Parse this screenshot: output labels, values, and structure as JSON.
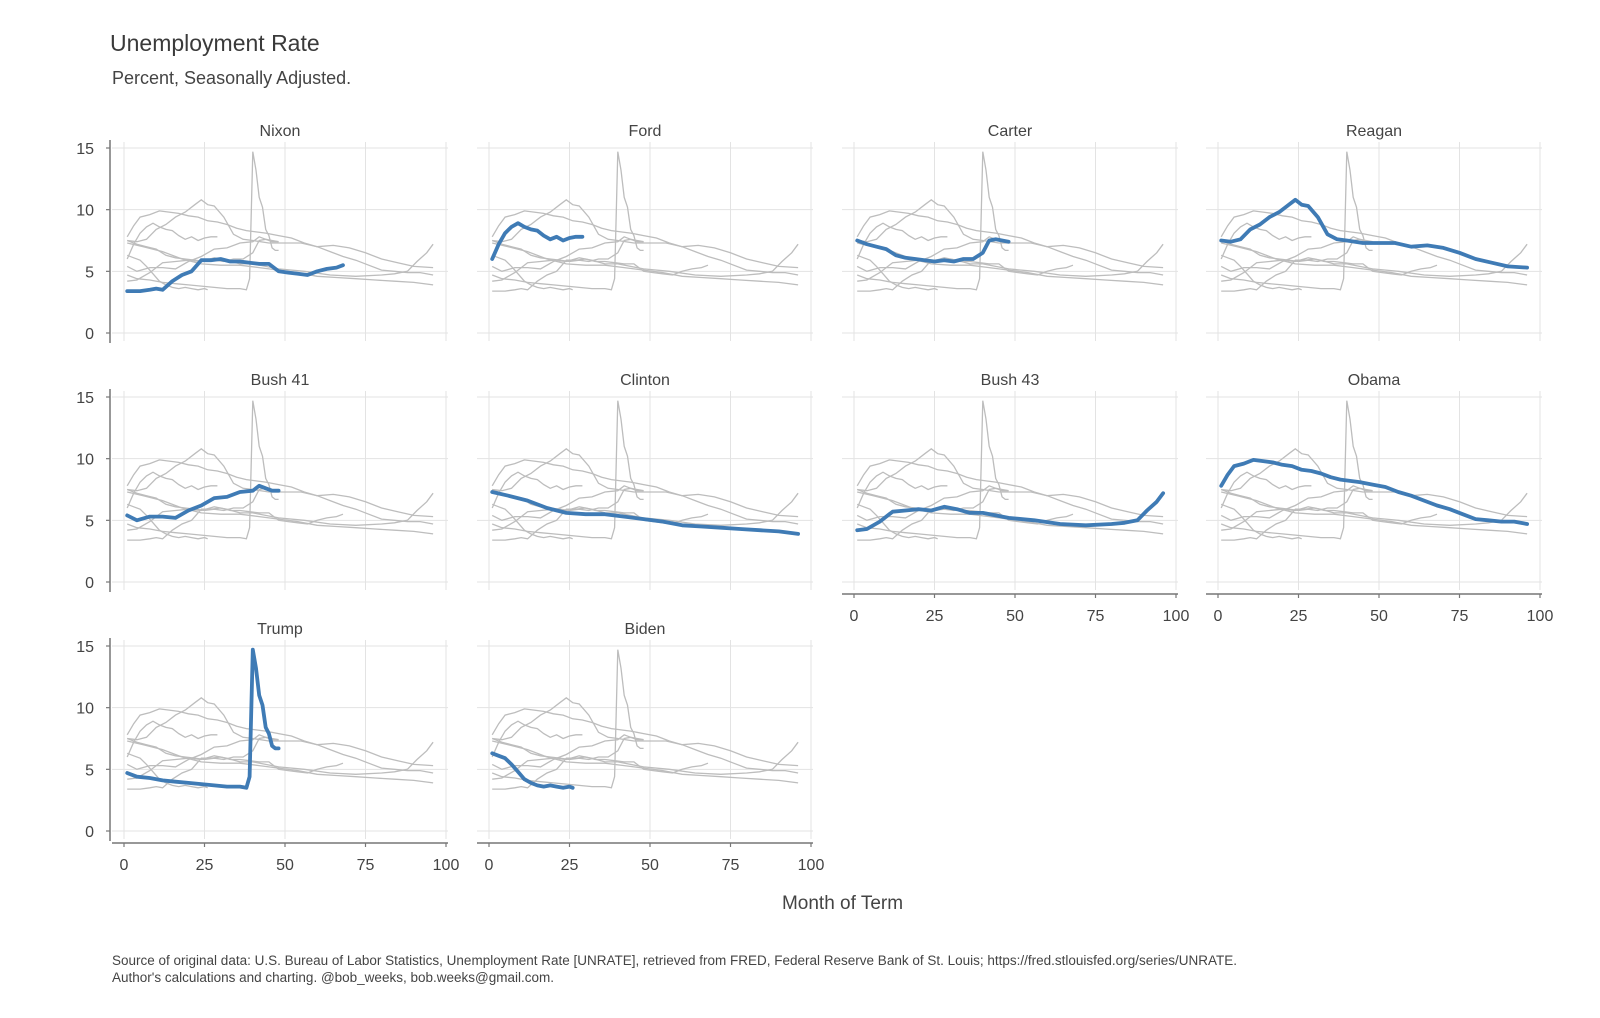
{
  "chart_data": {
    "type": "line",
    "layout": "small-multiples",
    "title": "Unemployment Rate",
    "subtitle": "Percent, Seasonally Adjusted.",
    "xlabel": "Month of Term",
    "ylabel": "",
    "xlim": [
      0,
      100
    ],
    "ylim": [
      0,
      15
    ],
    "x_ticks": [
      "0",
      "25",
      "50",
      "75",
      "100"
    ],
    "y_ticks": [
      "0",
      "5",
      "10",
      "15"
    ],
    "grid": true,
    "highlight_color": "#3f7bb5",
    "background_series_color": "#bdbdbd",
    "series": [
      {
        "name": "Nixon",
        "x": [
          1,
          5,
          8,
          10,
          12,
          15,
          18,
          21,
          24,
          27,
          30,
          33,
          36,
          39,
          42,
          45,
          48,
          51,
          54,
          57,
          60,
          63,
          66,
          68
        ],
        "values": [
          3.4,
          3.4,
          3.5,
          3.6,
          3.5,
          4.2,
          4.7,
          5.0,
          5.9,
          5.9,
          6.0,
          5.8,
          5.8,
          5.7,
          5.6,
          5.6,
          5.0,
          4.9,
          4.8,
          4.7,
          5.0,
          5.2,
          5.3,
          5.5
        ]
      },
      {
        "name": "Ford",
        "x": [
          1,
          3,
          5,
          7,
          9,
          11,
          13,
          15,
          17,
          19,
          21,
          23,
          25,
          27,
          29
        ],
        "values": [
          6.0,
          7.2,
          8.1,
          8.6,
          8.9,
          8.6,
          8.4,
          8.3,
          7.9,
          7.6,
          7.8,
          7.5,
          7.7,
          7.8,
          7.8
        ]
      },
      {
        "name": "Carter",
        "x": [
          1,
          4,
          7,
          10,
          13,
          16,
          19,
          22,
          25,
          28,
          31,
          34,
          37,
          40,
          42,
          44,
          46,
          48
        ],
        "values": [
          7.5,
          7.2,
          7.0,
          6.8,
          6.3,
          6.1,
          6.0,
          5.9,
          5.8,
          5.9,
          5.8,
          6.0,
          6.0,
          6.5,
          7.5,
          7.6,
          7.5,
          7.4
        ]
      },
      {
        "name": "Reagan",
        "x": [
          1,
          4,
          7,
          10,
          13,
          16,
          19,
          22,
          24,
          26,
          28,
          31,
          34,
          37,
          40,
          45,
          50,
          55,
          60,
          65,
          70,
          75,
          80,
          85,
          90,
          96
        ],
        "values": [
          7.5,
          7.4,
          7.6,
          8.4,
          8.8,
          9.4,
          9.8,
          10.4,
          10.8,
          10.4,
          10.3,
          9.4,
          8.0,
          7.6,
          7.5,
          7.3,
          7.3,
          7.3,
          7.0,
          7.1,
          6.9,
          6.5,
          6.0,
          5.7,
          5.4,
          5.3
        ]
      },
      {
        "name": "Bush 41",
        "x": [
          1,
          4,
          8,
          12,
          16,
          20,
          24,
          28,
          32,
          36,
          40,
          42,
          44,
          46,
          48
        ],
        "values": [
          5.4,
          5.0,
          5.3,
          5.3,
          5.2,
          5.8,
          6.2,
          6.8,
          6.9,
          7.3,
          7.4,
          7.8,
          7.6,
          7.4,
          7.4
        ]
      },
      {
        "name": "Clinton",
        "x": [
          1,
          6,
          12,
          18,
          24,
          30,
          36,
          42,
          48,
          54,
          60,
          66,
          72,
          78,
          84,
          90,
          96
        ],
        "values": [
          7.3,
          7.0,
          6.6,
          6.0,
          5.6,
          5.5,
          5.5,
          5.3,
          5.1,
          4.9,
          4.6,
          4.5,
          4.4,
          4.3,
          4.2,
          4.1,
          3.9
        ]
      },
      {
        "name": "Bush 43",
        "x": [
          1,
          4,
          8,
          12,
          16,
          20,
          24,
          28,
          32,
          36,
          40,
          48,
          56,
          64,
          72,
          80,
          84,
          88,
          91,
          94,
          96
        ],
        "values": [
          4.2,
          4.3,
          4.9,
          5.7,
          5.8,
          5.9,
          5.8,
          6.1,
          5.9,
          5.6,
          5.6,
          5.2,
          5.0,
          4.7,
          4.6,
          4.7,
          4.8,
          5.0,
          5.8,
          6.5,
          7.2
        ]
      },
      {
        "name": "Obama",
        "x": [
          1,
          3,
          5,
          8,
          11,
          14,
          17,
          20,
          23,
          26,
          29,
          32,
          35,
          38,
          41,
          44,
          48,
          52,
          56,
          60,
          64,
          68,
          72,
          76,
          80,
          84,
          88,
          92,
          96
        ],
        "values": [
          7.8,
          8.7,
          9.4,
          9.6,
          9.9,
          9.8,
          9.7,
          9.5,
          9.4,
          9.1,
          9.0,
          8.8,
          8.5,
          8.3,
          8.2,
          8.1,
          7.9,
          7.7,
          7.3,
          7.0,
          6.6,
          6.2,
          5.9,
          5.5,
          5.1,
          5.0,
          4.9,
          4.9,
          4.7
        ]
      },
      {
        "name": "Trump",
        "x": [
          1,
          4,
          8,
          12,
          16,
          20,
          24,
          28,
          32,
          36,
          38,
          39,
          40,
          41,
          42,
          43,
          44,
          45,
          46,
          47,
          48
        ],
        "values": [
          4.7,
          4.4,
          4.3,
          4.1,
          4.0,
          3.9,
          3.8,
          3.7,
          3.6,
          3.6,
          3.5,
          4.4,
          14.7,
          13.2,
          11.0,
          10.2,
          8.4,
          7.9,
          6.9,
          6.7,
          6.7
        ]
      },
      {
        "name": "Biden",
        "x": [
          1,
          3,
          5,
          7,
          9,
          11,
          13,
          15,
          17,
          19,
          21,
          23,
          25,
          26
        ],
        "values": [
          6.3,
          6.1,
          5.9,
          5.4,
          4.8,
          4.2,
          3.9,
          3.7,
          3.6,
          3.7,
          3.6,
          3.5,
          3.6,
          3.5
        ]
      }
    ]
  },
  "caption": {
    "line1": "Source of original data: U.S. Bureau of Labor Statistics, Unemployment Rate [UNRATE], retrieved from FRED, Federal Reserve Bank of St. Louis; https://fred.stlouisfed.org/series/UNRATE.",
    "line2": "Author's calculations and charting. @bob_weeks, bob.weeks@gmail.com."
  }
}
